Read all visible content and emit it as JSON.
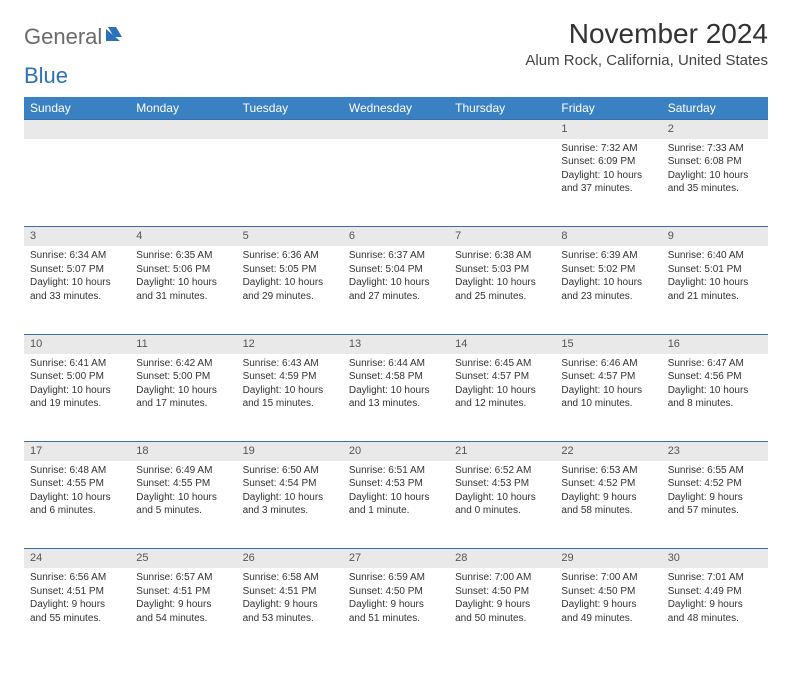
{
  "brand": {
    "first": "General",
    "second": "Blue"
  },
  "title": "November 2024",
  "location": "Alum Rock, California, United States",
  "colors": {
    "header_bg": "#3a81c4",
    "header_text": "#ffffff",
    "daynum_bg": "#e9e9e9",
    "row_divider": "#3a6fa5",
    "brand_gray": "#6b6b6b",
    "brand_blue": "#2c72b8",
    "page_bg": "#ffffff",
    "text": "#333333"
  },
  "typography": {
    "title_size_pt": 21,
    "location_size_pt": 11,
    "header_size_pt": 9,
    "daynum_size_pt": 8,
    "cell_size_pt": 7.5
  },
  "layout": {
    "columns": 7,
    "rows": 5,
    "col_width_pct": 14.28
  },
  "weekdays": [
    "Sunday",
    "Monday",
    "Tuesday",
    "Wednesday",
    "Thursday",
    "Friday",
    "Saturday"
  ],
  "weeks": [
    [
      null,
      null,
      null,
      null,
      null,
      {
        "n": "1",
        "sr": "Sunrise: 7:32 AM",
        "ss": "Sunset: 6:09 PM",
        "dl": "Daylight: 10 hours and 37 minutes."
      },
      {
        "n": "2",
        "sr": "Sunrise: 7:33 AM",
        "ss": "Sunset: 6:08 PM",
        "dl": "Daylight: 10 hours and 35 minutes."
      }
    ],
    [
      {
        "n": "3",
        "sr": "Sunrise: 6:34 AM",
        "ss": "Sunset: 5:07 PM",
        "dl": "Daylight: 10 hours and 33 minutes."
      },
      {
        "n": "4",
        "sr": "Sunrise: 6:35 AM",
        "ss": "Sunset: 5:06 PM",
        "dl": "Daylight: 10 hours and 31 minutes."
      },
      {
        "n": "5",
        "sr": "Sunrise: 6:36 AM",
        "ss": "Sunset: 5:05 PM",
        "dl": "Daylight: 10 hours and 29 minutes."
      },
      {
        "n": "6",
        "sr": "Sunrise: 6:37 AM",
        "ss": "Sunset: 5:04 PM",
        "dl": "Daylight: 10 hours and 27 minutes."
      },
      {
        "n": "7",
        "sr": "Sunrise: 6:38 AM",
        "ss": "Sunset: 5:03 PM",
        "dl": "Daylight: 10 hours and 25 minutes."
      },
      {
        "n": "8",
        "sr": "Sunrise: 6:39 AM",
        "ss": "Sunset: 5:02 PM",
        "dl": "Daylight: 10 hours and 23 minutes."
      },
      {
        "n": "9",
        "sr": "Sunrise: 6:40 AM",
        "ss": "Sunset: 5:01 PM",
        "dl": "Daylight: 10 hours and 21 minutes."
      }
    ],
    [
      {
        "n": "10",
        "sr": "Sunrise: 6:41 AM",
        "ss": "Sunset: 5:00 PM",
        "dl": "Daylight: 10 hours and 19 minutes."
      },
      {
        "n": "11",
        "sr": "Sunrise: 6:42 AM",
        "ss": "Sunset: 5:00 PM",
        "dl": "Daylight: 10 hours and 17 minutes."
      },
      {
        "n": "12",
        "sr": "Sunrise: 6:43 AM",
        "ss": "Sunset: 4:59 PM",
        "dl": "Daylight: 10 hours and 15 minutes."
      },
      {
        "n": "13",
        "sr": "Sunrise: 6:44 AM",
        "ss": "Sunset: 4:58 PM",
        "dl": "Daylight: 10 hours and 13 minutes."
      },
      {
        "n": "14",
        "sr": "Sunrise: 6:45 AM",
        "ss": "Sunset: 4:57 PM",
        "dl": "Daylight: 10 hours and 12 minutes."
      },
      {
        "n": "15",
        "sr": "Sunrise: 6:46 AM",
        "ss": "Sunset: 4:57 PM",
        "dl": "Daylight: 10 hours and 10 minutes."
      },
      {
        "n": "16",
        "sr": "Sunrise: 6:47 AM",
        "ss": "Sunset: 4:56 PM",
        "dl": "Daylight: 10 hours and 8 minutes."
      }
    ],
    [
      {
        "n": "17",
        "sr": "Sunrise: 6:48 AM",
        "ss": "Sunset: 4:55 PM",
        "dl": "Daylight: 10 hours and 6 minutes."
      },
      {
        "n": "18",
        "sr": "Sunrise: 6:49 AM",
        "ss": "Sunset: 4:55 PM",
        "dl": "Daylight: 10 hours and 5 minutes."
      },
      {
        "n": "19",
        "sr": "Sunrise: 6:50 AM",
        "ss": "Sunset: 4:54 PM",
        "dl": "Daylight: 10 hours and 3 minutes."
      },
      {
        "n": "20",
        "sr": "Sunrise: 6:51 AM",
        "ss": "Sunset: 4:53 PM",
        "dl": "Daylight: 10 hours and 1 minute."
      },
      {
        "n": "21",
        "sr": "Sunrise: 6:52 AM",
        "ss": "Sunset: 4:53 PM",
        "dl": "Daylight: 10 hours and 0 minutes."
      },
      {
        "n": "22",
        "sr": "Sunrise: 6:53 AM",
        "ss": "Sunset: 4:52 PM",
        "dl": "Daylight: 9 hours and 58 minutes."
      },
      {
        "n": "23",
        "sr": "Sunrise: 6:55 AM",
        "ss": "Sunset: 4:52 PM",
        "dl": "Daylight: 9 hours and 57 minutes."
      }
    ],
    [
      {
        "n": "24",
        "sr": "Sunrise: 6:56 AM",
        "ss": "Sunset: 4:51 PM",
        "dl": "Daylight: 9 hours and 55 minutes."
      },
      {
        "n": "25",
        "sr": "Sunrise: 6:57 AM",
        "ss": "Sunset: 4:51 PM",
        "dl": "Daylight: 9 hours and 54 minutes."
      },
      {
        "n": "26",
        "sr": "Sunrise: 6:58 AM",
        "ss": "Sunset: 4:51 PM",
        "dl": "Daylight: 9 hours and 53 minutes."
      },
      {
        "n": "27",
        "sr": "Sunrise: 6:59 AM",
        "ss": "Sunset: 4:50 PM",
        "dl": "Daylight: 9 hours and 51 minutes."
      },
      {
        "n": "28",
        "sr": "Sunrise: 7:00 AM",
        "ss": "Sunset: 4:50 PM",
        "dl": "Daylight: 9 hours and 50 minutes."
      },
      {
        "n": "29",
        "sr": "Sunrise: 7:00 AM",
        "ss": "Sunset: 4:50 PM",
        "dl": "Daylight: 9 hours and 49 minutes."
      },
      {
        "n": "30",
        "sr": "Sunrise: 7:01 AM",
        "ss": "Sunset: 4:49 PM",
        "dl": "Daylight: 9 hours and 48 minutes."
      }
    ]
  ]
}
